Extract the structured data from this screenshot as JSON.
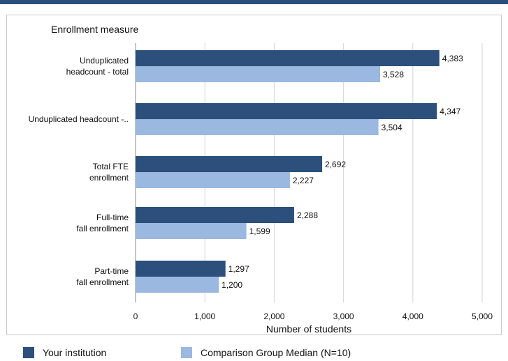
{
  "chart_data": {
    "type": "bar",
    "orientation": "horizontal",
    "title": "",
    "category_axis_title": "Enrollment measure",
    "xlabel": "Number of students",
    "xlim": [
      0,
      5000
    ],
    "ticks": [
      0,
      1000,
      2000,
      3000,
      4000,
      5000
    ],
    "tick_labels": [
      "0",
      "1,000",
      "2,000",
      "3,000",
      "4,000",
      "5,000"
    ],
    "categories": [
      [
        "Unduplicated",
        "headcount - total"
      ],
      [
        "Unduplicated headcount -.."
      ],
      [
        "Total FTE",
        "enrollment"
      ],
      [
        "Full-time",
        "fall enrollment"
      ],
      [
        "Part-time",
        "fall enrollment"
      ]
    ],
    "series": [
      {
        "name": "Your institution",
        "color": "#2c4f7c",
        "values": [
          4383,
          4347,
          2692,
          2288,
          1297
        ],
        "labels": [
          "4,383",
          "4,347",
          "2,692",
          "2,288",
          "1,297"
        ]
      },
      {
        "name": "Comparison Group Median (N=10)",
        "color": "#9ab8e0",
        "values": [
          3528,
          3504,
          2227,
          1599,
          1200
        ],
        "labels": [
          "3,528",
          "3,504",
          "2,227",
          "1,599",
          "1,200"
        ]
      }
    ],
    "grid": true,
    "legend_position": "bottom"
  }
}
